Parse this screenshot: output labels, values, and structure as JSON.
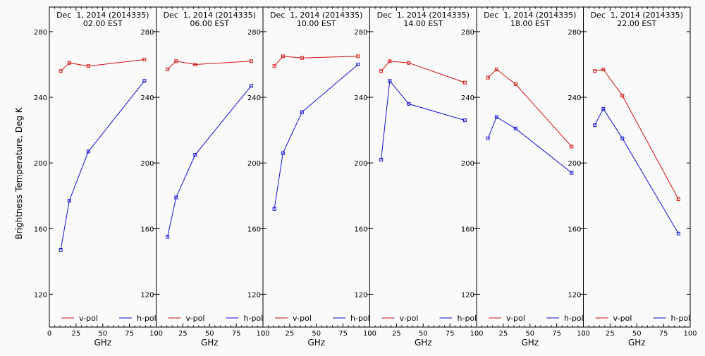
{
  "y_axis_label": "Brightness Temperature, Deg K",
  "x_axis_label": "GHz",
  "chart_data": [
    {
      "type": "line",
      "title_line1": "Dec  1, 2014 (2014335)",
      "title_line2": "02.00 EST",
      "xlabel": "GHz",
      "ylabel": "Brightness Temperature, Deg K",
      "xlim": [
        0,
        100
      ],
      "ylim": [
        100,
        295
      ],
      "x_ticks": [
        0,
        25,
        50,
        75,
        100
      ],
      "y_ticks": [
        120,
        160,
        200,
        240,
        280
      ],
      "series": [
        {
          "name": "v-pol",
          "color": "#d01010",
          "x": [
            10.65,
            18.7,
            36.5,
            89
          ],
          "y": [
            256,
            261,
            259,
            263
          ]
        },
        {
          "name": "h-pol",
          "color": "#1010d0",
          "x": [
            10.65,
            18.7,
            36.5,
            89
          ],
          "y": [
            147,
            177,
            207,
            250
          ]
        }
      ],
      "legend": "bottom"
    },
    {
      "type": "line",
      "title_line1": "Dec  1, 2014 (2014335)",
      "title_line2": "06.00 EST",
      "xlabel": "GHz",
      "ylabel": "",
      "xlim": [
        0,
        100
      ],
      "ylim": [
        100,
        295
      ],
      "x_ticks": [
        0,
        25,
        50,
        75,
        100
      ],
      "y_ticks": [
        120,
        160,
        200,
        240,
        280
      ],
      "series": [
        {
          "name": "v-pol",
          "color": "#d01010",
          "x": [
            10.65,
            18.7,
            36.5,
            89
          ],
          "y": [
            257,
            262,
            260,
            262
          ]
        },
        {
          "name": "h-pol",
          "color": "#1010d0",
          "x": [
            10.65,
            18.7,
            36.5,
            89
          ],
          "y": [
            155,
            179,
            205,
            247
          ]
        }
      ],
      "legend": "bottom"
    },
    {
      "type": "line",
      "title_line1": "Dec  1, 2014 (2014335)",
      "title_line2": "10.00 EST",
      "xlabel": "GHz",
      "ylabel": "",
      "xlim": [
        0,
        100
      ],
      "ylim": [
        100,
        295
      ],
      "x_ticks": [
        0,
        25,
        50,
        75,
        100
      ],
      "y_ticks": [
        120,
        160,
        200,
        240,
        280
      ],
      "series": [
        {
          "name": "v-pol",
          "color": "#d01010",
          "x": [
            10.65,
            18.7,
            36.5,
            89
          ],
          "y": [
            259,
            265,
            264,
            265
          ]
        },
        {
          "name": "h-pol",
          "color": "#1010d0",
          "x": [
            10.65,
            18.7,
            36.5,
            89
          ],
          "y": [
            172,
            206,
            231,
            260
          ]
        }
      ],
      "legend": "bottom"
    },
    {
      "type": "line",
      "title_line1": "Dec  1, 2014 (2014335)",
      "title_line2": "14.00 EST",
      "xlabel": "GHz",
      "ylabel": "",
      "xlim": [
        0,
        100
      ],
      "ylim": [
        100,
        295
      ],
      "x_ticks": [
        0,
        25,
        50,
        75,
        100
      ],
      "y_ticks": [
        120,
        160,
        200,
        240,
        280
      ],
      "series": [
        {
          "name": "v-pol",
          "color": "#d01010",
          "x": [
            10.65,
            18.7,
            36.5,
            89
          ],
          "y": [
            256,
            262,
            261,
            249
          ]
        },
        {
          "name": "h-pol",
          "color": "#1010d0",
          "x": [
            10.65,
            18.7,
            36.5,
            89
          ],
          "y": [
            202,
            250,
            236,
            226
          ]
        }
      ],
      "legend": "bottom"
    },
    {
      "type": "line",
      "title_line1": "Dec  1, 2014 (2014335)",
      "title_line2": "18.00 EST",
      "xlabel": "GHz",
      "ylabel": "",
      "xlim": [
        0,
        100
      ],
      "ylim": [
        100,
        295
      ],
      "x_ticks": [
        0,
        25,
        50,
        75,
        100
      ],
      "y_ticks": [
        120,
        160,
        200,
        240,
        280
      ],
      "series": [
        {
          "name": "v-pol",
          "color": "#d01010",
          "x": [
            10.65,
            18.7,
            36.5,
            89
          ],
          "y": [
            252,
            257,
            248,
            210
          ]
        },
        {
          "name": "h-pol",
          "color": "#1010d0",
          "x": [
            10.65,
            18.7,
            36.5,
            89
          ],
          "y": [
            215,
            228,
            221,
            194
          ]
        }
      ],
      "legend": "bottom"
    },
    {
      "type": "line",
      "title_line1": "Dec  1, 2014 (2014335)",
      "title_line2": "22.00 EST",
      "xlabel": "GHz",
      "ylabel": "",
      "xlim": [
        0,
        100
      ],
      "ylim": [
        100,
        295
      ],
      "x_ticks": [
        0,
        25,
        50,
        75,
        100
      ],
      "y_ticks": [
        120,
        160,
        200,
        240,
        280
      ],
      "series": [
        {
          "name": "v-pol",
          "color": "#d01010",
          "x": [
            10.65,
            18.7,
            36.5,
            89
          ],
          "y": [
            256,
            257,
            241,
            178
          ]
        },
        {
          "name": "h-pol",
          "color": "#1010d0",
          "x": [
            10.65,
            18.7,
            36.5,
            89
          ],
          "y": [
            223,
            233,
            215,
            157
          ]
        }
      ],
      "legend": "bottom"
    }
  ]
}
